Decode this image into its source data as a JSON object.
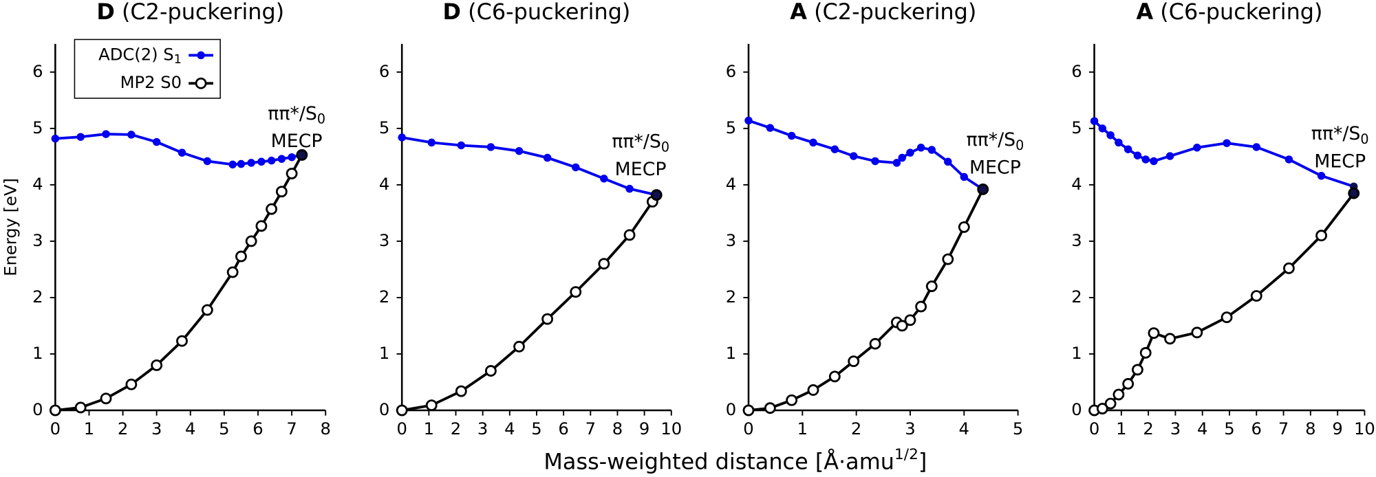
{
  "figure": {
    "xlabel": {
      "text": "Mass-weighted distance [Å·amu",
      "sup": "1/2",
      "end": "]"
    }
  },
  "chart_data": [
    {
      "type": "line",
      "title_bold": "D",
      "title": "(C2-puckering)",
      "ylabel": "Energy [eV]",
      "legend": "upper left",
      "xlim": [
        0,
        8
      ],
      "xticks": [
        0,
        1,
        2,
        3,
        4,
        5,
        6,
        7,
        8
      ],
      "ylim": [
        0,
        6.5
      ],
      "yticks": [
        0,
        1,
        2,
        3,
        4,
        5,
        6
      ],
      "annotation": {
        "text": "ππ*/S",
        "sub": "0",
        "line2": "MECP"
      },
      "series": [
        {
          "name": "ADC(2) S",
          "name_sub": "1",
          "color": "#0000ee",
          "marker": "filled",
          "x": [
            0,
            0.75,
            1.5,
            2.25,
            3.0,
            3.75,
            4.5,
            5.25,
            5.5,
            5.8,
            6.1,
            6.4,
            6.7,
            7.0,
            7.3
          ],
          "values": [
            4.82,
            4.85,
            4.9,
            4.89,
            4.76,
            4.57,
            4.42,
            4.36,
            4.37,
            4.39,
            4.41,
            4.43,
            4.46,
            4.49,
            4.53
          ]
        },
        {
          "name": "MP2 S0",
          "color": "#000000",
          "marker": "open",
          "x": [
            0,
            0.75,
            1.5,
            2.25,
            3.0,
            3.75,
            4.5,
            5.25,
            5.5,
            5.8,
            6.1,
            6.4,
            6.7,
            7.0,
            7.3
          ],
          "values": [
            0,
            0.05,
            0.21,
            0.46,
            0.8,
            1.23,
            1.78,
            2.45,
            2.73,
            3.0,
            3.27,
            3.57,
            3.88,
            4.2,
            4.53
          ]
        }
      ]
    },
    {
      "type": "line",
      "title_bold": "D",
      "title": "(C6-puckering)",
      "xlim": [
        0,
        10
      ],
      "xticks": [
        0,
        1,
        2,
        3,
        4,
        5,
        6,
        7,
        8,
        9,
        10
      ],
      "ylim": [
        0,
        6.5
      ],
      "yticks": [
        0,
        1,
        2,
        3,
        4,
        5,
        6
      ],
      "annotation": {
        "text": "ππ*/S",
        "sub": "0",
        "line2": "MECP"
      },
      "series": [
        {
          "name": "ADC(2) S",
          "name_sub": "1",
          "color": "#0000ee",
          "marker": "filled",
          "x": [
            0,
            1.1,
            2.2,
            3.3,
            4.35,
            5.4,
            6.45,
            7.5,
            8.45,
            9.45
          ],
          "values": [
            4.84,
            4.75,
            4.7,
            4.67,
            4.6,
            4.48,
            4.31,
            4.11,
            3.93,
            3.82
          ]
        },
        {
          "name": "MP2 S0",
          "color": "#000000",
          "marker": "open",
          "x": [
            0,
            1.1,
            2.2,
            3.3,
            4.35,
            5.4,
            6.45,
            7.5,
            8.45,
            9.3,
            9.45
          ],
          "values": [
            0,
            0.09,
            0.34,
            0.7,
            1.13,
            1.62,
            2.1,
            2.6,
            3.11,
            3.7,
            3.82
          ]
        }
      ]
    },
    {
      "type": "line",
      "title_bold": "A",
      "title": "(C2-puckering)",
      "xlim": [
        0,
        5
      ],
      "xticks": [
        0,
        1,
        2,
        3,
        4,
        5
      ],
      "ylim": [
        0,
        6.5
      ],
      "yticks": [
        0,
        1,
        2,
        3,
        4,
        5,
        6
      ],
      "annotation": {
        "text": "ππ*/S",
        "sub": "0",
        "line2": "MECP"
      },
      "series": [
        {
          "name": "ADC(2) S",
          "name_sub": "1",
          "color": "#0000ee",
          "marker": "filled",
          "x": [
            0,
            0.4,
            0.8,
            1.2,
            1.6,
            1.95,
            2.35,
            2.75,
            2.85,
            3.0,
            3.2,
            3.4,
            3.7,
            4.0,
            4.35
          ],
          "values": [
            5.14,
            5.01,
            4.87,
            4.75,
            4.63,
            4.51,
            4.42,
            4.39,
            4.48,
            4.57,
            4.66,
            4.62,
            4.41,
            4.14,
            3.92
          ]
        },
        {
          "name": "MP2 S0",
          "color": "#000000",
          "marker": "open",
          "x": [
            0,
            0.4,
            0.8,
            1.2,
            1.6,
            1.95,
            2.35,
            2.75,
            2.85,
            3.0,
            3.2,
            3.4,
            3.7,
            4.0,
            4.35
          ],
          "values": [
            0,
            0.04,
            0.18,
            0.36,
            0.6,
            0.87,
            1.18,
            1.56,
            1.5,
            1.6,
            1.84,
            2.2,
            2.68,
            3.25,
            3.92
          ]
        }
      ]
    },
    {
      "type": "line",
      "title_bold": "A",
      "title": "(C6-puckering)",
      "xlim": [
        0,
        10
      ],
      "xticks": [
        0,
        1,
        2,
        3,
        4,
        5,
        6,
        7,
        8,
        9,
        10
      ],
      "ylim": [
        0,
        6.5
      ],
      "yticks": [
        0,
        1,
        2,
        3,
        4,
        5,
        6
      ],
      "annotation": {
        "text": "ππ*/S",
        "sub": "0",
        "line2": "MECP"
      },
      "series": [
        {
          "name": "ADC(2) S",
          "name_sub": "1",
          "color": "#0000ee",
          "marker": "filled",
          "x": [
            0,
            0.3,
            0.6,
            0.9,
            1.25,
            1.6,
            1.9,
            2.2,
            2.8,
            3.8,
            4.9,
            6.0,
            7.2,
            8.4,
            9.6
          ],
          "values": [
            5.13,
            5.0,
            4.88,
            4.75,
            4.63,
            4.52,
            4.45,
            4.42,
            4.51,
            4.66,
            4.74,
            4.67,
            4.45,
            4.16,
            3.97
          ]
        },
        {
          "name": "MP2 S0",
          "color": "#000000",
          "marker": "open",
          "x": [
            0,
            0.3,
            0.6,
            0.9,
            1.25,
            1.6,
            1.9,
            2.2,
            2.8,
            3.8,
            4.9,
            6.0,
            7.2,
            8.4,
            9.6
          ],
          "values": [
            0,
            0.03,
            0.12,
            0.28,
            0.47,
            0.72,
            1.02,
            1.37,
            1.27,
            1.38,
            1.65,
            2.03,
            2.52,
            3.1,
            3.85
          ]
        }
      ]
    }
  ]
}
